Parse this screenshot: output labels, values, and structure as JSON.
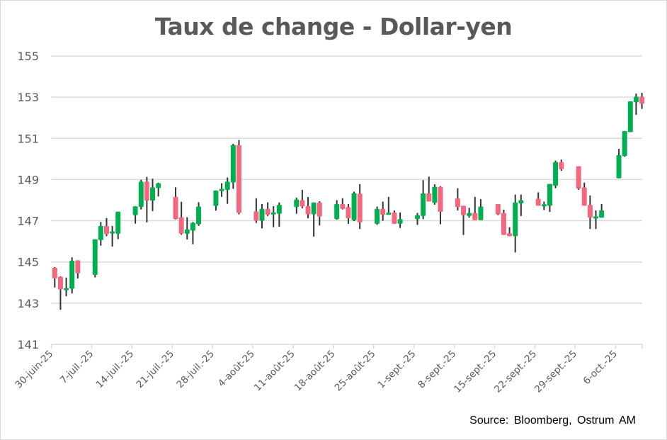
{
  "chart_data": {
    "type": "candlestick",
    "title": "Taux de change - Dollar-yen",
    "xlabel": "",
    "ylabel": "",
    "ylim": [
      141,
      155
    ],
    "yticks": [
      141,
      143,
      145,
      147,
      149,
      151,
      153,
      155
    ],
    "grid": true,
    "legend": null,
    "colors": {
      "up": "#00B050",
      "down": "#F4677F",
      "wick": "#333333",
      "grid": "#D9D9D9",
      "axis_text": "#595959"
    },
    "x_tick_labels": [
      "30-juin-25",
      "7-juil.-25",
      "14-juil.-25",
      "21-juil.-25",
      "28-juil.-25",
      "4-août-25",
      "11-août-25",
      "18-août-25",
      "25-août-25",
      "1-sept.-25",
      "8-sept.-25",
      "15-sept.-25",
      "22-sept.-25",
      "29-sept.-25",
      "6-oct.-25"
    ],
    "source": "Source: Bloomberg,  Ostrum  AM",
    "ohlc_columns": [
      "week",
      "day",
      "open",
      "high",
      "low",
      "close"
    ],
    "candles": [
      [
        0,
        0,
        144.72,
        144.75,
        143.76,
        144.2
      ],
      [
        0,
        1,
        144.28,
        144.3,
        142.68,
        143.66
      ],
      [
        0,
        2,
        143.66,
        144.24,
        143.33,
        143.7
      ],
      [
        0,
        3,
        143.7,
        145.22,
        143.47,
        145.06
      ],
      [
        0,
        4,
        145.08,
        145.08,
        144.2,
        144.45
      ],
      [
        1,
        0,
        144.37,
        146.1,
        144.25,
        146.1
      ],
      [
        1,
        1,
        146.06,
        146.94,
        145.79,
        146.75
      ],
      [
        1,
        2,
        146.75,
        147.13,
        146.25,
        146.35
      ],
      [
        1,
        3,
        146.38,
        146.75,
        145.75,
        146.48
      ],
      [
        1,
        4,
        146.37,
        147.44,
        146.11,
        147.44
      ],
      [
        2,
        0,
        147.27,
        147.7,
        146.86,
        147.7
      ],
      [
        2,
        1,
        147.67,
        148.99,
        147.55,
        148.9
      ],
      [
        2,
        2,
        148.9,
        149.13,
        146.92,
        147.98
      ],
      [
        2,
        3,
        147.98,
        149.04,
        147.47,
        148.62
      ],
      [
        2,
        4,
        148.59,
        148.85,
        148.18,
        148.82
      ],
      [
        3,
        0,
        148.16,
        148.62,
        147.06,
        147.09
      ],
      [
        3,
        1,
        147.17,
        147.92,
        146.32,
        146.37
      ],
      [
        3,
        2,
        146.37,
        147.17,
        146.09,
        146.58
      ],
      [
        3,
        3,
        146.52,
        146.94,
        145.86,
        146.9
      ],
      [
        3,
        4,
        146.83,
        147.9,
        146.75,
        147.69
      ],
      [
        4,
        0,
        147.72,
        148.47,
        147.49,
        148.47
      ],
      [
        4,
        1,
        148.44,
        148.82,
        148.16,
        148.55
      ],
      [
        4,
        2,
        148.5,
        149.1,
        147.82,
        148.9
      ],
      [
        4,
        3,
        148.86,
        150.74,
        148.55,
        150.67
      ],
      [
        4,
        4,
        150.67,
        150.92,
        147.31,
        147.38
      ],
      [
        5,
        0,
        147.46,
        148.09,
        146.89,
        147.0
      ],
      [
        5,
        1,
        147.0,
        147.81,
        146.63,
        147.58
      ],
      [
        5,
        2,
        147.58,
        147.89,
        147.23,
        147.29
      ],
      [
        5,
        3,
        147.31,
        147.71,
        146.69,
        147.4
      ],
      [
        5,
        4,
        147.34,
        147.89,
        146.71,
        147.77
      ],
      [
        6,
        0,
        147.66,
        148.12,
        147.34,
        148.03
      ],
      [
        6,
        1,
        148.0,
        148.5,
        147.6,
        147.69
      ],
      [
        6,
        2,
        147.72,
        148.15,
        147.12,
        147.31
      ],
      [
        6,
        3,
        147.31,
        147.89,
        146.23,
        147.89
      ],
      [
        6,
        4,
        147.89,
        147.95,
        146.77,
        147.2
      ],
      [
        7,
        0,
        147.08,
        148.0,
        147.05,
        147.81
      ],
      [
        7,
        1,
        147.81,
        148.09,
        147.55,
        147.58
      ],
      [
        7,
        2,
        147.66,
        147.81,
        146.85,
        147.12
      ],
      [
        7,
        3,
        147.03,
        148.41,
        146.98,
        148.34
      ],
      [
        7,
        4,
        148.32,
        148.78,
        146.6,
        146.92
      ],
      [
        8,
        0,
        146.85,
        147.69,
        146.8,
        147.58
      ],
      [
        8,
        1,
        147.58,
        147.93,
        147.0,
        147.29
      ],
      [
        8,
        2,
        147.29,
        148.16,
        147.29,
        147.4
      ],
      [
        8,
        3,
        147.4,
        147.5,
        146.85,
        146.85
      ],
      [
        8,
        4,
        146.85,
        147.4,
        146.65,
        147.08
      ],
      [
        9,
        0,
        147.08,
        147.38,
        146.8,
        147.27
      ],
      [
        9,
        1,
        147.23,
        148.97,
        147.08,
        148.33
      ],
      [
        9,
        2,
        148.33,
        149.14,
        147.93,
        147.93
      ],
      [
        9,
        3,
        147.87,
        148.77,
        147.78,
        148.65
      ],
      [
        9,
        4,
        148.65,
        148.68,
        146.83,
        147.43
      ],
      [
        10,
        0,
        148.08,
        148.58,
        147.5,
        147.66
      ],
      [
        10,
        1,
        147.73,
        147.73,
        146.31,
        147.27
      ],
      [
        10,
        2,
        147.23,
        147.63,
        147.15,
        147.38
      ],
      [
        10,
        3,
        147.38,
        148.16,
        147.03,
        147.03
      ],
      [
        10,
        4,
        147.03,
        148.05,
        147.03,
        147.69
      ],
      [
        11,
        0,
        147.81,
        147.81,
        147.27,
        147.31
      ],
      [
        11,
        1,
        147.38,
        147.54,
        146.31,
        146.31
      ],
      [
        11,
        2,
        146.39,
        146.69,
        146.25,
        146.25
      ],
      [
        11,
        3,
        146.25,
        148.27,
        145.46,
        147.89
      ],
      [
        11,
        4,
        147.84,
        148.27,
        147.23,
        148.0
      ],
      [
        12,
        0,
        148.07,
        148.38,
        147.73,
        147.73
      ],
      [
        12,
        1,
        147.7,
        147.93,
        147.52,
        147.8
      ],
      [
        12,
        2,
        147.73,
        148.79,
        147.43,
        148.79
      ],
      [
        12,
        3,
        148.7,
        149.92,
        148.58,
        149.85
      ],
      [
        12,
        4,
        149.85,
        149.97,
        149.42,
        149.5
      ],
      [
        13,
        0,
        149.65,
        149.65,
        148.5,
        148.56
      ],
      [
        13,
        1,
        148.62,
        148.85,
        147.73,
        147.73
      ],
      [
        13,
        2,
        147.77,
        148.23,
        146.6,
        147.15
      ],
      [
        13,
        3,
        147.12,
        147.5,
        146.6,
        147.2
      ],
      [
        13,
        4,
        147.15,
        147.81,
        147.15,
        147.5
      ],
      [
        14,
        0,
        149.06,
        150.49,
        149.06,
        150.19
      ],
      [
        14,
        1,
        150.14,
        151.36,
        150.11,
        151.36
      ],
      [
        14,
        2,
        151.3,
        152.8,
        151.3,
        152.8
      ],
      [
        14,
        3,
        152.75,
        153.17,
        152.14,
        153.02
      ],
      [
        14,
        4,
        153.02,
        153.21,
        152.43,
        152.68
      ]
    ]
  }
}
